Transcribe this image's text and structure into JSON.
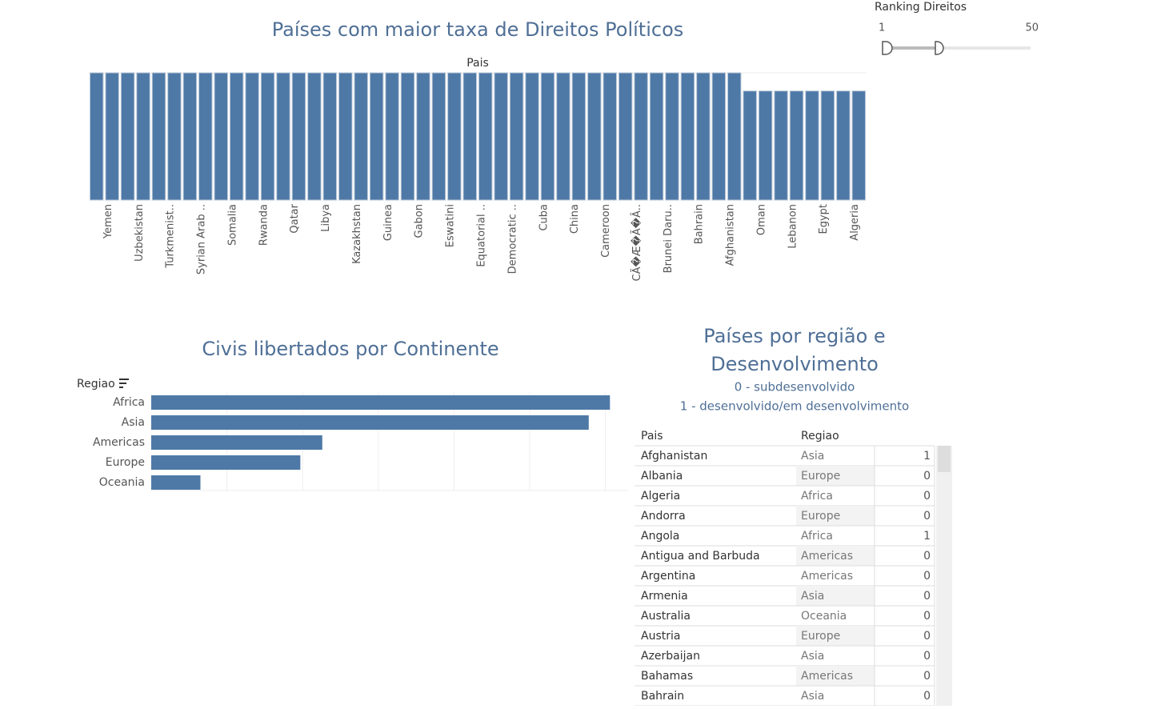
{
  "chart_data": [
    {
      "type": "bar",
      "title": "Países com maior taxa de Direitos Políticos",
      "x_label": "Pais",
      "categories": [
        null,
        "Yemen",
        null,
        "Uzbekistan",
        null,
        "Turkmenist..",
        null,
        "Syrian Arab ..",
        null,
        "Somalia",
        null,
        "Rwanda",
        null,
        "Qatar",
        null,
        "Libya",
        null,
        "Kazakhstan",
        null,
        "Guinea",
        null,
        "Gabon",
        null,
        "Eswatini",
        null,
        "Equatorial ..",
        null,
        "Democratic ..",
        null,
        "Cuba",
        null,
        "China",
        null,
        "Cameroon",
        null,
        "CÃ�Æ�Ã�Â..",
        null,
        "Brunei Daru..",
        null,
        "Bahrain",
        null,
        "Afghanistan",
        null,
        "Oman",
        null,
        "Lebanon",
        null,
        "Egypt",
        null,
        "Algeria"
      ],
      "values": [
        7,
        7,
        7,
        7,
        7,
        7,
        7,
        7,
        7,
        7,
        7,
        7,
        7,
        7,
        7,
        7,
        7,
        7,
        7,
        7,
        7,
        7,
        7,
        7,
        7,
        7,
        7,
        7,
        7,
        7,
        7,
        7,
        7,
        7,
        7,
        7,
        7,
        7,
        7,
        7,
        7,
        7,
        6,
        6,
        6,
        6,
        6,
        6,
        6,
        6
      ],
      "color": "#4e79a7",
      "ylim": [
        0,
        7
      ]
    },
    {
      "type": "hbar",
      "title": "Civis libertados por Continente",
      "y_label": "Regiao",
      "categories": [
        "Africa",
        "Asia",
        "Americas",
        "Europe",
        "Oceania"
      ],
      "values": [
        60.6,
        57.8,
        22.6,
        19.7,
        6.5
      ],
      "color": "#4e79a7",
      "xlim": [
        0,
        63
      ],
      "grid_x": [
        10,
        20,
        30,
        40,
        50,
        60
      ]
    }
  ],
  "slider": {
    "label": "Ranking Direitos",
    "min": 1,
    "max": 50,
    "low": 1,
    "high": 19
  },
  "table": {
    "title": "Países por região e Desenvolvimento",
    "legend": [
      "0 - subdesenvolvido",
      "1 - desenvolvido/em desenvolvimento"
    ],
    "columns": [
      "Pais",
      "Regiao"
    ],
    "rows": [
      [
        "Afghanistan",
        "Asia",
        1
      ],
      [
        "Albania",
        "Europe",
        0
      ],
      [
        "Algeria",
        "Africa",
        0
      ],
      [
        "Andorra",
        "Europe",
        0
      ],
      [
        "Angola",
        "Africa",
        1
      ],
      [
        "Antigua and Barbuda",
        "Americas",
        0
      ],
      [
        "Argentina",
        "Americas",
        0
      ],
      [
        "Armenia",
        "Asia",
        0
      ],
      [
        "Australia",
        "Oceania",
        0
      ],
      [
        "Austria",
        "Europe",
        0
      ],
      [
        "Azerbaijan",
        "Asia",
        0
      ],
      [
        "Bahamas",
        "Americas",
        0
      ],
      [
        "Bahrain",
        "Asia",
        0
      ]
    ]
  }
}
